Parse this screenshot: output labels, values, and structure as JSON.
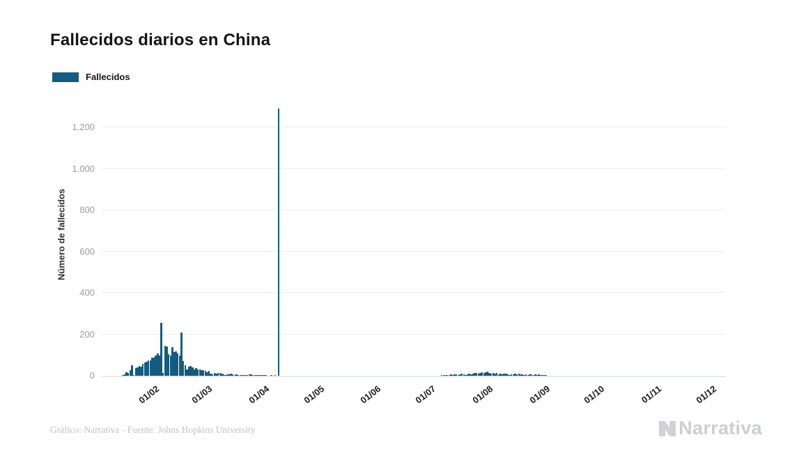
{
  "header": {
    "title": "Fallecidos diarios en China"
  },
  "legend": {
    "items": [
      {
        "label": "Fallecidos",
        "color": "#135c7f"
      }
    ]
  },
  "footer": {
    "credit": "Gráfico: Narrativa - Fuente: Johns Hopkins University",
    "logo_text": "Narrativa"
  },
  "chart_data": {
    "type": "bar",
    "title": "Fallecidos diarios en China",
    "series_name": "Fallecidos",
    "xlabel": "",
    "ylabel": "Número de fallecidos",
    "ylim": [
      0,
      1300
    ],
    "y_ticks": [
      0,
      200,
      400,
      600,
      800,
      1000,
      1200
    ],
    "y_tick_labels": [
      "0",
      "200",
      "400",
      "600",
      "800",
      "1.000",
      "1.200"
    ],
    "x_tick_labels": [
      "01/02",
      "01/03",
      "01/04",
      "01/05",
      "01/06",
      "01/07",
      "01/08",
      "01/09",
      "01/10",
      "01/11",
      "01/12"
    ],
    "xlim": [
      "2020-01-12",
      "2020-12-16"
    ],
    "bar_color": "#135c7f",
    "grid": "horizontal",
    "legend_position": "top-left",
    "peak_value": 1290,
    "peak_date": "2020-04-17",
    "start_date": "2020-01-23",
    "values": [
      1,
      8,
      16,
      14,
      26,
      49,
      2,
      38,
      42,
      46,
      45,
      58,
      64,
      66,
      73,
      73,
      86,
      89,
      97,
      108,
      97,
      254,
      13,
      143,
      142,
      105,
      98,
      139,
      115,
      118,
      109,
      97,
      210,
      71,
      52,
      29,
      44,
      47,
      42,
      31,
      38,
      31,
      30,
      28,
      27,
      22,
      17,
      22,
      11,
      7,
      13,
      10,
      14,
      13,
      11,
      8,
      3,
      7,
      6,
      9,
      7,
      4,
      6,
      5,
      3,
      5,
      4,
      2,
      1,
      7,
      6,
      4,
      3,
      3,
      2,
      1,
      2,
      1,
      1,
      0,
      0,
      1,
      0,
      1,
      0,
      1290,
      0,
      0,
      0,
      0,
      0,
      0,
      0,
      0,
      0,
      0,
      0,
      0,
      0,
      0,
      0,
      0,
      0,
      0,
      0,
      0,
      0,
      0,
      0,
      0,
      0,
      0,
      0,
      0,
      0,
      0,
      0,
      0,
      0,
      0,
      0,
      0,
      0,
      0,
      0,
      0,
      0,
      0,
      0,
      0,
      0,
      0,
      0,
      0,
      0,
      0,
      0,
      0,
      0,
      0,
      0,
      0,
      0,
      0,
      0,
      0,
      0,
      0,
      0,
      0,
      0,
      0,
      0,
      0,
      0,
      0,
      0,
      0,
      0,
      0,
      0,
      0,
      0,
      0,
      0,
      0,
      0,
      0,
      0,
      0,
      0,
      0,
      0,
      0,
      1,
      2,
      3,
      2,
      4,
      6,
      5,
      8,
      6,
      4,
      7,
      9,
      6,
      5,
      8,
      10,
      7,
      9,
      12,
      15,
      11,
      14,
      17,
      13,
      16,
      19,
      14,
      11,
      13,
      9,
      12,
      8,
      10,
      6,
      9,
      11,
      7,
      5,
      8,
      6,
      9,
      7,
      10,
      8,
      6,
      4,
      7,
      5,
      6,
      8,
      5,
      7,
      4,
      6,
      3,
      5,
      2,
      3,
      0,
      0,
      0,
      0,
      0,
      0,
      0,
      0,
      0,
      0,
      0,
      0,
      0,
      0,
      0,
      0,
      0,
      0,
      0,
      0
    ]
  }
}
